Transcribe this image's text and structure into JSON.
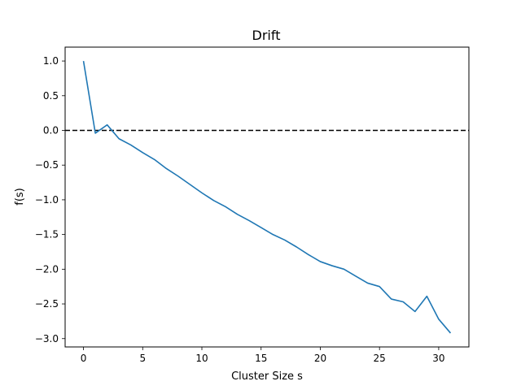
{
  "chart_data": {
    "type": "line",
    "title": "Drift",
    "xlabel": "Cluster Size s",
    "ylabel": "f(s)",
    "xlim": [
      -1.55,
      32.55
    ],
    "ylim": [
      -3.12,
      1.2
    ],
    "xticks": [
      0,
      5,
      10,
      15,
      20,
      25,
      30
    ],
    "yticks": [
      1.0,
      0.5,
      0.0,
      -0.5,
      -1.0,
      -1.5,
      -2.0,
      -2.5,
      -3.0
    ],
    "xtick_labels": [
      "0",
      "5",
      "10",
      "15",
      "20",
      "25",
      "30"
    ],
    "ytick_labels": [
      "1.0",
      "0.5",
      "0.0",
      "−0.5",
      "−1.0",
      "−1.5",
      "−2.0",
      "−2.5",
      "−3.0"
    ],
    "grid": false,
    "reference_line": {
      "y": 0.0,
      "style": "dashed",
      "color": "#000000"
    },
    "series": [
      {
        "color": "#1f77b4",
        "x": [
          0,
          1,
          2,
          3,
          4,
          5,
          6,
          7,
          8,
          9,
          10,
          11,
          12,
          13,
          14,
          15,
          16,
          17,
          18,
          19,
          20,
          21,
          22,
          23,
          24,
          25,
          26,
          27,
          28,
          29,
          30,
          31
        ],
        "values": [
          1.0,
          -0.04,
          0.08,
          -0.12,
          -0.21,
          -0.32,
          -0.42,
          -0.55,
          -0.66,
          -0.78,
          -0.9,
          -1.01,
          -1.1,
          -1.21,
          -1.3,
          -1.4,
          -1.5,
          -1.58,
          -1.68,
          -1.79,
          -1.89,
          -1.95,
          -2.0,
          -2.1,
          -2.2,
          -2.25,
          -2.43,
          -2.47,
          -2.61,
          -2.39,
          -2.72,
          -2.92
        ]
      }
    ]
  }
}
